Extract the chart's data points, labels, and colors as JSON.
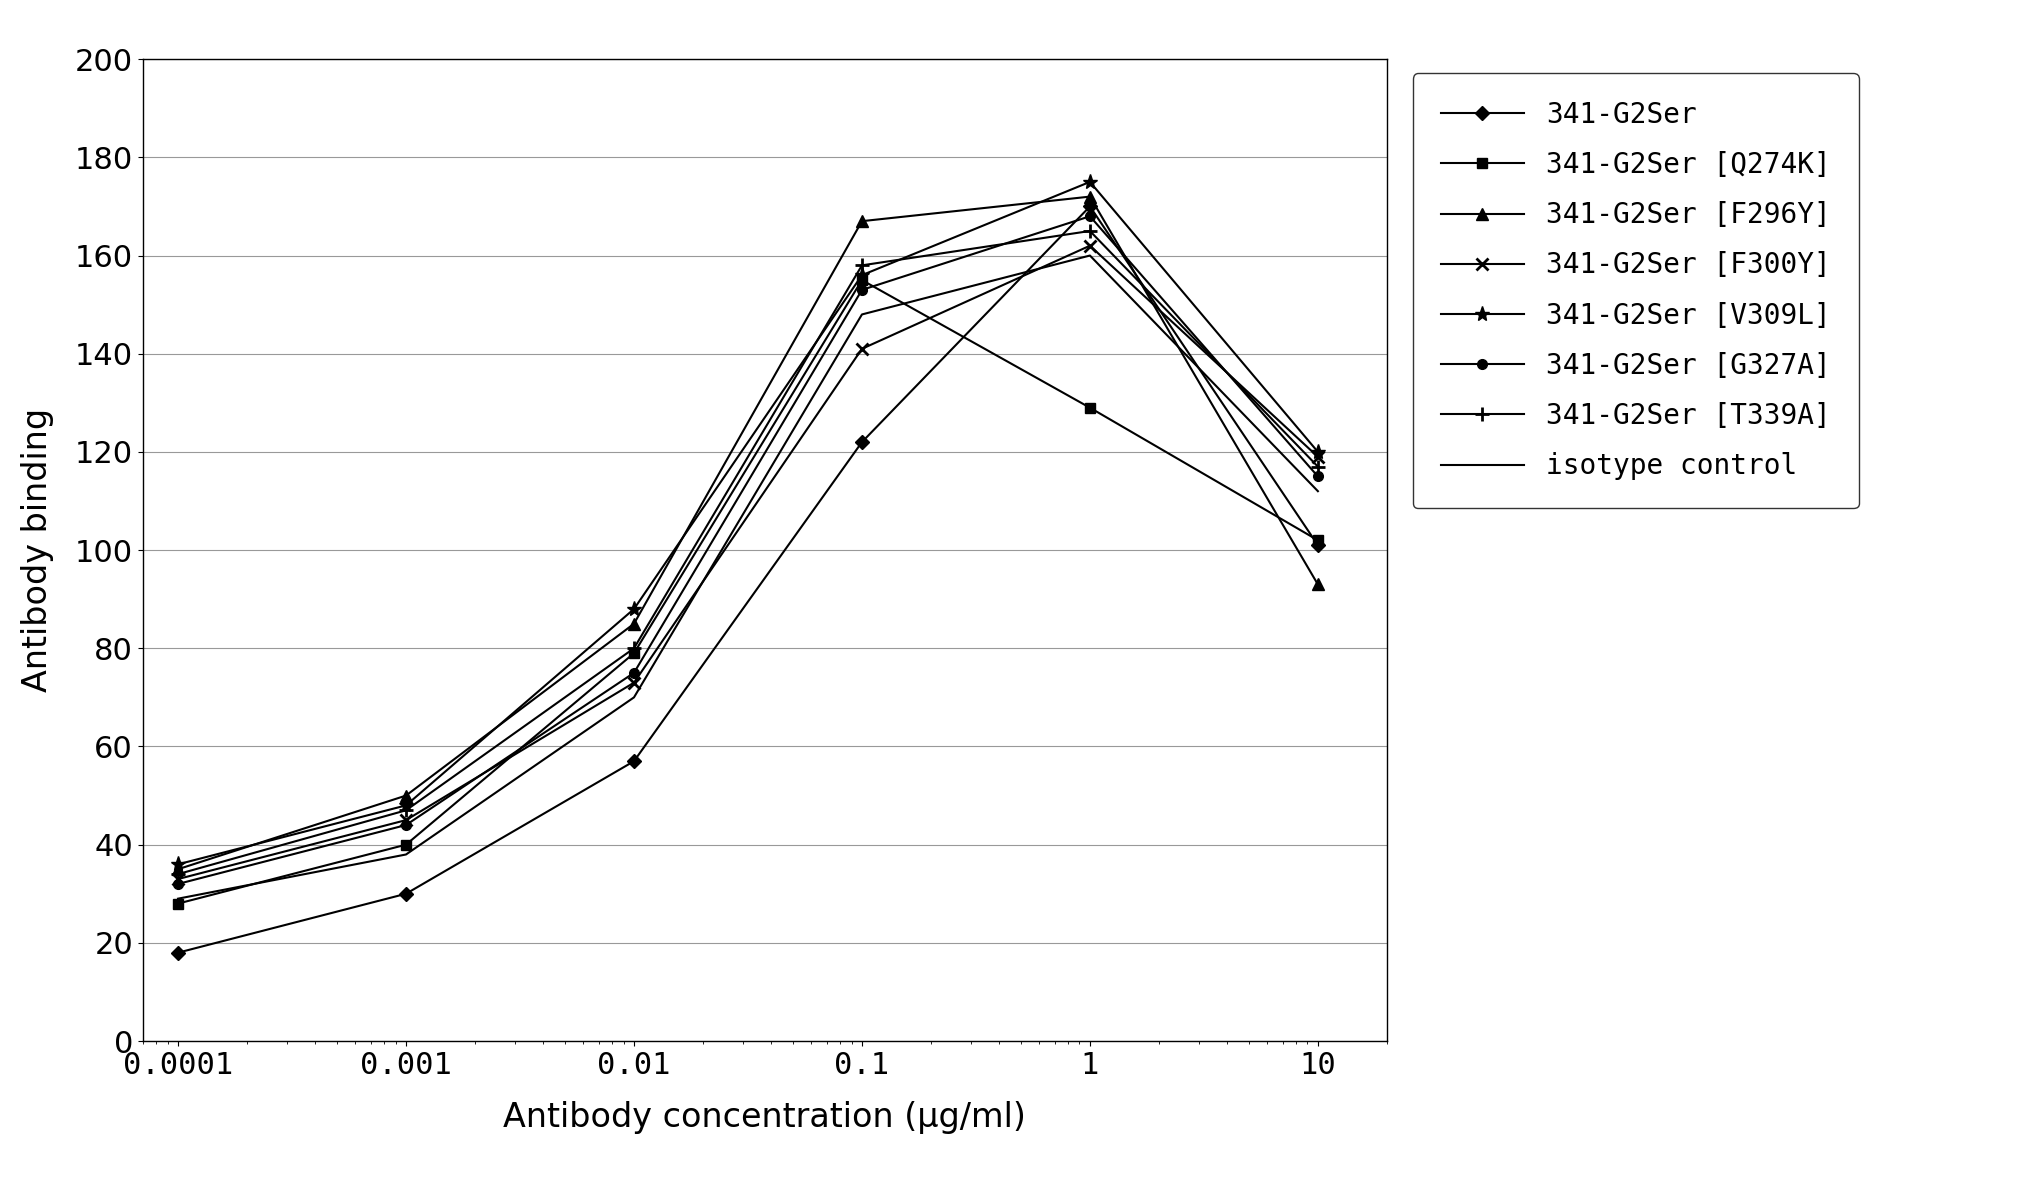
{
  "x_values": [
    0.0001,
    0.001,
    0.01,
    0.1,
    1,
    10
  ],
  "series": [
    {
      "label": "341-G2Ser",
      "marker": "D",
      "markersize": 7,
      "values": [
        18,
        30,
        57,
        122,
        170,
        101
      ]
    },
    {
      "label": "341-G2Ser [Q274K]",
      "marker": "s",
      "markersize": 7,
      "values": [
        28,
        40,
        79,
        155,
        129,
        102
      ]
    },
    {
      "label": "341-G2Ser [F296Y]",
      "marker": "^",
      "markersize": 8,
      "values": [
        35,
        50,
        85,
        167,
        172,
        93
      ]
    },
    {
      "label": "341-G2Ser [F300Y]",
      "marker": "x",
      "markersize": 9,
      "values": [
        33,
        45,
        73,
        141,
        162,
        119
      ]
    },
    {
      "label": "341-G2Ser [V309L]",
      "marker": "*",
      "markersize": 11,
      "values": [
        36,
        48,
        88,
        156,
        175,
        120
      ]
    },
    {
      "label": "341-G2Ser [G327A]",
      "marker": "o",
      "markersize": 7,
      "values": [
        32,
        44,
        75,
        153,
        168,
        115
      ]
    },
    {
      "label": "341-G2Ser [T339A]",
      "marker": "+",
      "markersize": 10,
      "values": [
        34,
        47,
        80,
        158,
        165,
        117
      ]
    },
    {
      "label": "isotype control",
      "marker": "None",
      "markersize": 0,
      "values": [
        29,
        38,
        70,
        148,
        160,
        112
      ]
    }
  ],
  "xlabel": "Antibody concentration (μg/ml)",
  "ylabel": "Antibody binding",
  "ylim": [
    0,
    200
  ],
  "yticks": [
    0,
    20,
    40,
    60,
    80,
    100,
    120,
    140,
    160,
    180,
    200
  ],
  "xtick_labels": [
    "0.0001",
    "0.001",
    "0.01",
    "0.1",
    "1",
    "10"
  ],
  "color": "#000000",
  "background_color": "#ffffff",
  "grid_color": "#999999",
  "linewidth": 1.5,
  "figwidth": 20.39,
  "figheight": 11.83,
  "dpi": 100
}
